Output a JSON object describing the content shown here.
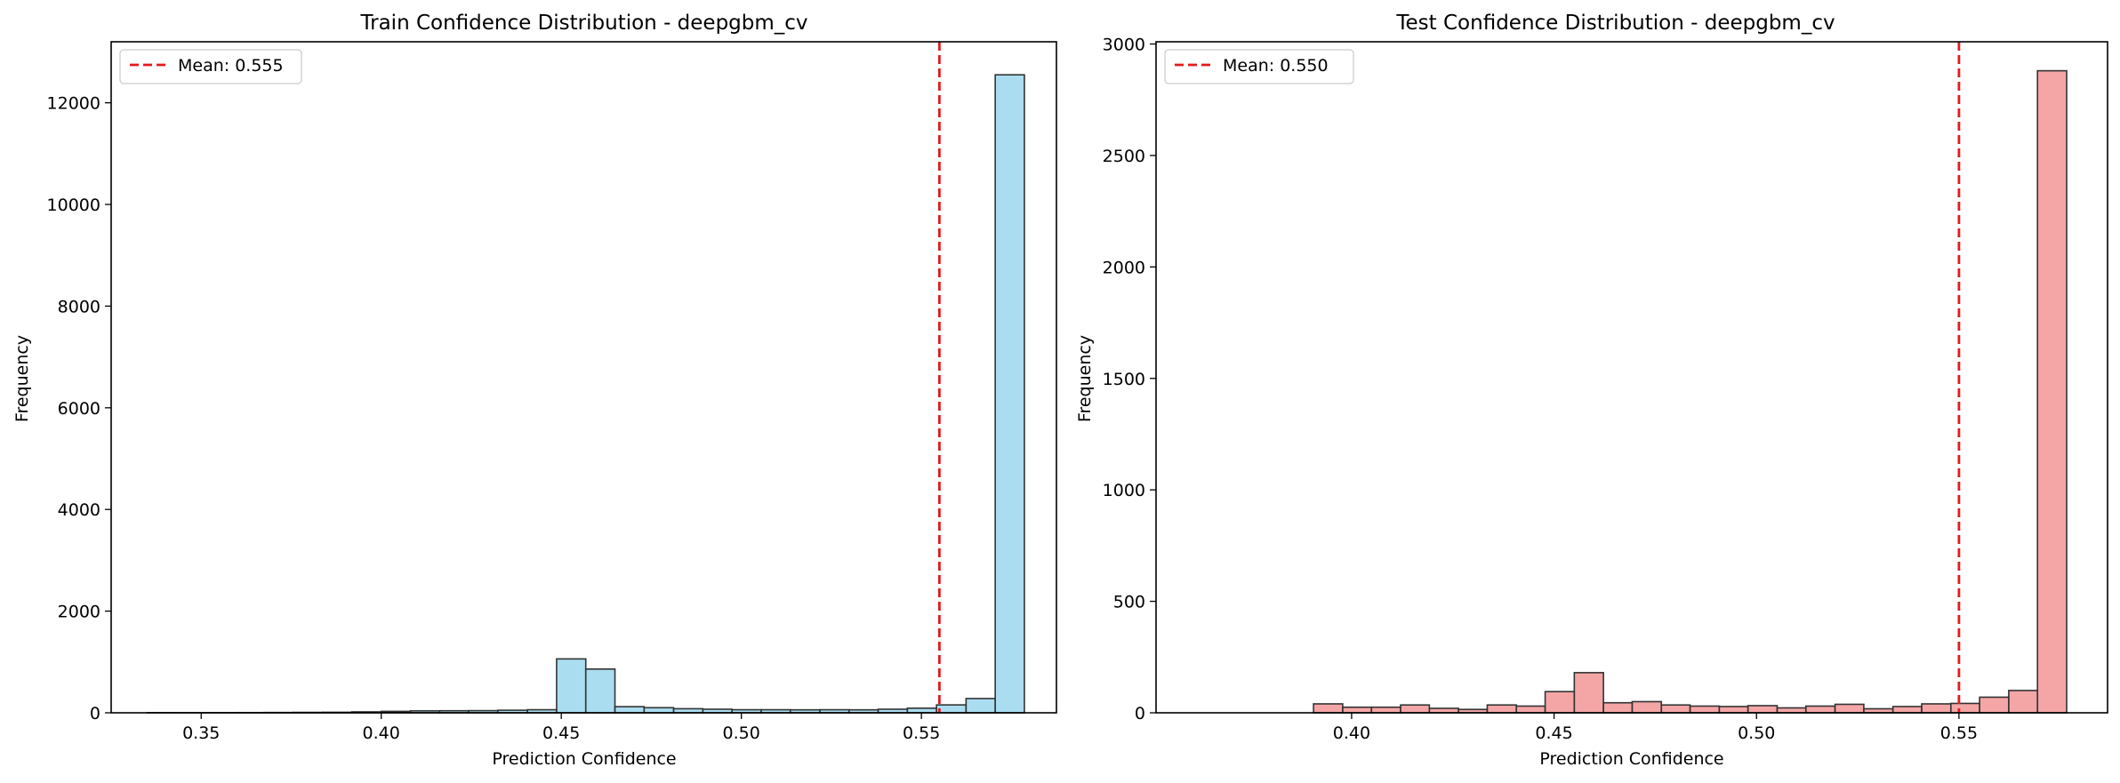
{
  "chart_data": [
    {
      "type": "bar",
      "title": "Train Confidence Distribution - deepgbm_cv",
      "xlabel": "Prediction Confidence",
      "ylabel": "Frequency",
      "xlim": [
        0.325,
        0.5875
      ],
      "ylim": [
        0,
        13200
      ],
      "xticks": [
        0.35,
        0.4,
        0.45,
        0.5,
        0.55
      ],
      "xtick_labels": [
        "0.35",
        "0.40",
        "0.45",
        "0.50",
        "0.55"
      ],
      "yticks": [
        0,
        2000,
        4000,
        6000,
        8000,
        10000,
        12000
      ],
      "ytick_labels": [
        "0",
        "2000",
        "4000",
        "6000",
        "8000",
        "10000",
        "12000"
      ],
      "bin_edges": [
        0.335,
        0.3431,
        0.3512,
        0.3594,
        0.3675,
        0.3756,
        0.3837,
        0.3918,
        0.4,
        0.4081,
        0.4162,
        0.4243,
        0.4324,
        0.4406,
        0.4487,
        0.4568,
        0.4649,
        0.473,
        0.4812,
        0.4893,
        0.4974,
        0.5055,
        0.5136,
        0.5218,
        0.5299,
        0.538,
        0.5461,
        0.5542,
        0.5624,
        0.5705,
        0.5786
      ],
      "values": [
        3,
        2,
        3,
        4,
        6,
        8,
        10,
        18,
        28,
        38,
        40,
        42,
        50,
        60,
        1060,
        860,
        120,
        100,
        80,
        70,
        60,
        60,
        58,
        60,
        58,
        70,
        90,
        155,
        280,
        12550
      ],
      "bar_color": "#87ceeb",
      "mean_line": {
        "value": 0.555,
        "color": "#e41a1c"
      },
      "legend": {
        "label": "Mean: 0.555",
        "position": "top-left"
      },
      "grid": false
    },
    {
      "type": "bar",
      "title": "Test Confidence Distribution - deepgbm_cv",
      "xlabel": "Prediction Confidence",
      "ylabel": "Frequency",
      "xlim": [
        0.3517,
        0.5867
      ],
      "ylim": [
        0,
        3010
      ],
      "xticks": [
        0.4,
        0.45,
        0.5,
        0.55
      ],
      "xtick_labels": [
        "0.40",
        "0.45",
        "0.50",
        "0.55"
      ],
      "yticks": [
        0,
        500,
        1000,
        1500,
        2000,
        2500,
        3000
      ],
      "ytick_labels": [
        "0",
        "500",
        "1000",
        "1500",
        "2000",
        "2500",
        "3000"
      ],
      "bin_edges": [
        0.362,
        0.3692,
        0.3763,
        0.3835,
        0.3906,
        0.3978,
        0.4049,
        0.4121,
        0.4192,
        0.4264,
        0.4335,
        0.4407,
        0.4478,
        0.455,
        0.4622,
        0.4693,
        0.4765,
        0.4836,
        0.4908,
        0.4979,
        0.5051,
        0.5122,
        0.5194,
        0.5265,
        0.5337,
        0.5408,
        0.548,
        0.5551,
        0.5623,
        0.5694,
        0.5766
      ],
      "values": [
        0,
        0,
        0,
        0,
        40,
        25,
        25,
        35,
        20,
        15,
        35,
        30,
        95,
        180,
        45,
        50,
        35,
        30,
        28,
        32,
        22,
        30,
        38,
        18,
        28,
        40,
        42,
        70,
        100,
        2880
      ],
      "bar_color": "#f08080",
      "mean_line": {
        "value": 0.55,
        "color": "#e41a1c"
      },
      "legend": {
        "label": "Mean: 0.550",
        "position": "top-left"
      },
      "grid": false
    }
  ]
}
